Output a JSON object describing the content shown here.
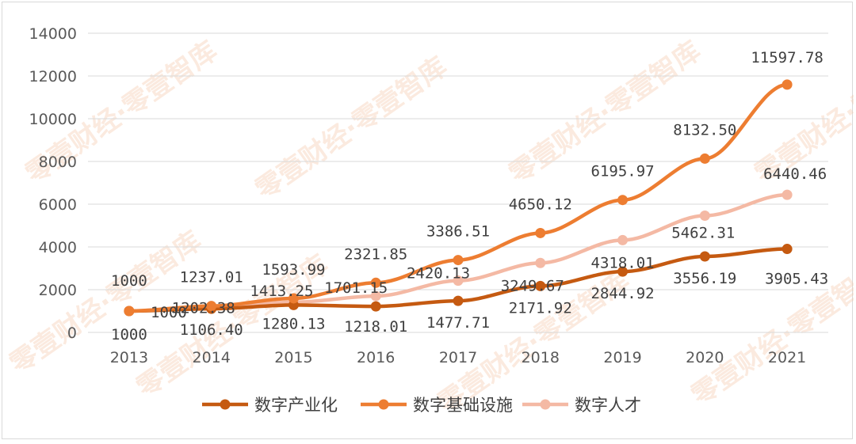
{
  "chart_data": {
    "type": "line",
    "categories": [
      "2013",
      "2014",
      "2015",
      "2016",
      "2017",
      "2018",
      "2019",
      "2020",
      "2021"
    ],
    "ylim": [
      0,
      14000
    ],
    "yticks": [
      0,
      2000,
      4000,
      6000,
      8000,
      10000,
      12000,
      14000
    ],
    "grid": true,
    "legend_position": "bottom",
    "series": [
      {
        "name": "数字产业化",
        "color": "#c55a11",
        "values": [
          1000,
          1106.4,
          1280.13,
          1218.01,
          1477.71,
          2171.92,
          2844.92,
          3556.19,
          3905.43
        ],
        "labels": [
          "1000",
          "1106.40",
          "1280.13",
          "1218.01",
          "1477.71",
          "2171.92",
          "2844.92",
          "3556.19",
          "3905.43"
        ]
      },
      {
        "name": "数字基础设施",
        "color": "#ed7d31",
        "values": [
          1000,
          1237.01,
          1593.99,
          2321.85,
          3386.51,
          4650.12,
          6195.97,
          8132.5,
          11597.78
        ],
        "labels": [
          "1000",
          "1237.01",
          "1593.99",
          "2321.85",
          "3386.51",
          "4650.12",
          "6195.97",
          "8132.50",
          "11597.78"
        ]
      },
      {
        "name": "数字人才",
        "color": "#f4b9a4",
        "values": [
          1000,
          1202.38,
          1413.25,
          1701.15,
          2420.13,
          3249.67,
          4318.01,
          5462.31,
          6440.46
        ],
        "labels": [
          "1000",
          "1202.38",
          "1413.25",
          "1701.15",
          "2420.13",
          "3249.67",
          "4318.01",
          "5462.31",
          "6440.46"
        ]
      }
    ]
  },
  "watermark": {
    "text": "零壹财经·零壹智库"
  }
}
